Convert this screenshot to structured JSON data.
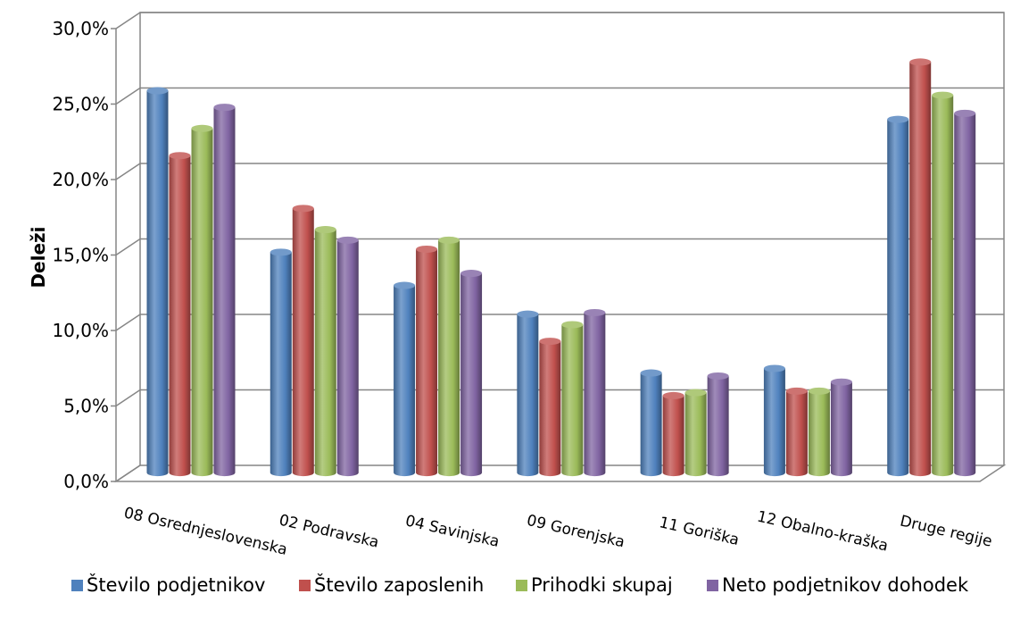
{
  "chart_data": {
    "type": "bar",
    "style": "3d-cylinder",
    "ylabel": "Deleži",
    "ylim": [
      0,
      30
    ],
    "y_ticks": [
      "0,0%",
      "5,0%",
      "10,0%",
      "15,0%",
      "20,0%",
      "25,0%",
      "30,0%"
    ],
    "y_tick_values": [
      0,
      5,
      10,
      15,
      20,
      25,
      30
    ],
    "grid": true,
    "legend_position": "bottom",
    "categories": [
      "08 Osrednjeslovenska",
      "02 Podravska",
      "04 Savinjska",
      "09 Gorenjska",
      "11 Goriška",
      "12 Obalno-kraška",
      "Druge regije"
    ],
    "series": [
      {
        "name": "Število podjetnikov",
        "color": "#4f81bd",
        "values": [
          25.3,
          14.6,
          12.4,
          10.5,
          6.6,
          6.9,
          23.4
        ]
      },
      {
        "name": "Število zaposlenih",
        "color": "#c0504d",
        "values": [
          21.0,
          17.5,
          14.8,
          8.7,
          5.1,
          5.4,
          27.2
        ]
      },
      {
        "name": "Prihodki skupaj",
        "color": "#9bbb59",
        "values": [
          22.8,
          16.1,
          15.4,
          9.8,
          5.3,
          5.4,
          25.0
        ]
      },
      {
        "name": "Neto podjetnikov dohodek",
        "color": "#8064a2",
        "values": [
          24.2,
          15.4,
          13.2,
          10.6,
          6.4,
          6.0,
          23.8
        ]
      }
    ]
  }
}
